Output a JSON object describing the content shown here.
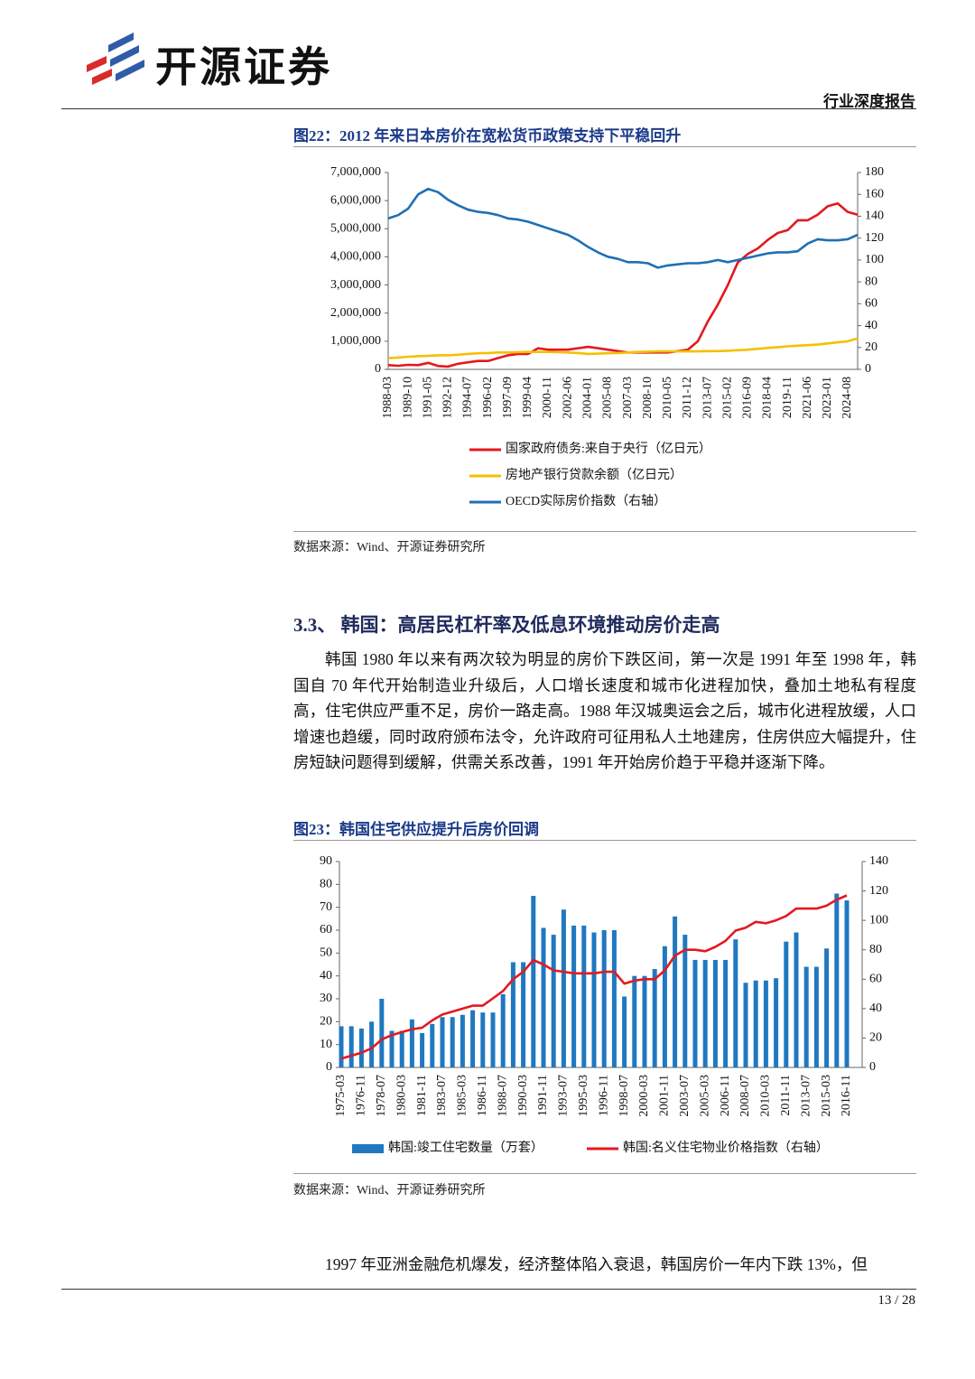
{
  "header": {
    "brand": "开源证券",
    "report_type": "行业深度报告"
  },
  "section": {
    "number": "3.3、",
    "title": "韩国：高居民杠杆率及低息环境推动房价走高"
  },
  "paragraphs": [
    "韩国 1980 年以来有两次较为明显的房价下跌区间，第一次是 1991 年至 1998 年，韩国自 70 年代开始制造业升级后，人口增长速度和城市化进程加快，叠加土地私有程度高，住宅供应严重不足，房价一路走高。1988 年汉城奥运会之后，城市化进程放缓，人口增速也趋缓，同时政府颁布法令，允许政府可征用私人土地建房，住房供应大幅提升，住房短缺问题得到缓解，供需关系改善，1991 年开始房价趋于平稳并逐渐下降。",
    "1997 年亚洲金融危机爆发，经济整体陷入衰退，韩国房价一年内下跌 13%，但"
  ],
  "sources": [
    "数据来源：Wind、开源证券研究所",
    "数据来源：Wind、开源证券研究所"
  ],
  "footer": {
    "page": "13 / 28"
  },
  "chart_data": [
    {
      "type": "line",
      "title": "图22：2012 年来日本房价在宽松货币政策支持下平稳回升",
      "categories": [
        "1988-03",
        null,
        "1989-10",
        null,
        "1991-05",
        null,
        "1992-12",
        null,
        "1994-07",
        null,
        "1996-02",
        null,
        "1997-09",
        null,
        "1999-04",
        null,
        "2000-11",
        null,
        "2002-06",
        null,
        "2004-01",
        null,
        "2005-08",
        null,
        "2007-03",
        null,
        "2008-10",
        null,
        "2010-05",
        null,
        "2011-12",
        null,
        "2013-07",
        null,
        "2015-02",
        null,
        "2016-09",
        null,
        "2018-04",
        null,
        "2019-11",
        null,
        "2021-06",
        null,
        "2023-01",
        null,
        "2024-08",
        null
      ],
      "series": [
        {
          "name": "国家政府债务:来自于央行（亿日元）",
          "color": "#e3191f",
          "values": [
            150000,
            130000,
            160000,
            150000,
            230000,
            120000,
            100000,
            200000,
            250000,
            300000,
            300000,
            400000,
            500000,
            550000,
            550000,
            750000,
            700000,
            700000,
            700000,
            750000,
            800000,
            750000,
            700000,
            650000,
            600000,
            600000,
            600000,
            600000,
            600000,
            650000,
            700000,
            1000000,
            1700000,
            2300000,
            3000000,
            3800000,
            4100000,
            4300000,
            4600000,
            4850000,
            4950000,
            5300000,
            5300000,
            5500000,
            5800000,
            5900000,
            5600000,
            5500000
          ]
        },
        {
          "name": "房地产银行贷款余额（亿日元）",
          "color": "#f5c000",
          "values": [
            400000,
            420000,
            450000,
            470000,
            480000,
            500000,
            500000,
            520000,
            550000,
            570000,
            580000,
            600000,
            600000,
            610000,
            620000,
            620000,
            620000,
            610000,
            600000,
            580000,
            550000,
            560000,
            570000,
            580000,
            600000,
            620000,
            630000,
            640000,
            640000,
            640000,
            640000,
            640000,
            650000,
            650000,
            660000,
            680000,
            700000,
            730000,
            760000,
            790000,
            820000,
            840000,
            860000,
            880000,
            920000,
            960000,
            1000000,
            1100000
          ]
        },
        {
          "name": "OECD实际房价指数（右轴）",
          "color": "#1f6fb5",
          "axis": "y2",
          "values": [
            138,
            141,
            147,
            160,
            165,
            162,
            155,
            150,
            146,
            144,
            143,
            141,
            138,
            137,
            135,
            132,
            129,
            126,
            123,
            118,
            112,
            107,
            103,
            101,
            98,
            98,
            97,
            93,
            95,
            96,
            97,
            97,
            98,
            100,
            98,
            100,
            102,
            104,
            106,
            107,
            107,
            108,
            115,
            119,
            118,
            118,
            119,
            123
          ]
        }
      ],
      "ylim": [
        0,
        7000000
      ],
      "yticks": [
        0,
        {
          "value": 1000000,
          "label": "1,000,000"
        },
        {
          "value": 2000000,
          "label": "2,000,000"
        },
        {
          "value": 3000000,
          "label": "3,000,000"
        },
        {
          "value": 4000000,
          "label": "4,000,000"
        },
        {
          "value": 5000000,
          "label": "5,000,000"
        },
        {
          "value": 6000000,
          "label": "6,000,000"
        },
        {
          "value": 7000000,
          "label": "7,000,000"
        }
      ],
      "y2lim": [
        0,
        180
      ],
      "y2ticks": [
        0,
        20,
        40,
        60,
        80,
        100,
        120,
        140,
        160,
        180
      ],
      "grid": false,
      "legend": "bottom"
    },
    {
      "type": "bar",
      "title": "图23：韩国住宅供应提升后房价回调",
      "categories": [
        "1975-03",
        null,
        "1976-11",
        null,
        "1978-07",
        null,
        "1980-03",
        null,
        "1981-11",
        null,
        "1983-07",
        null,
        "1985-03",
        null,
        "1986-11",
        null,
        "1988-07",
        null,
        "1990-03",
        null,
        "1991-11",
        null,
        "1993-07",
        null,
        "1995-03",
        null,
        "1996-11",
        null,
        "1998-07",
        null,
        "2000-03",
        null,
        "2001-11",
        null,
        "2003-07",
        null,
        "2005-03",
        null,
        "2006-11",
        null,
        "2008-07",
        null,
        "2010-03",
        null,
        "2011-11",
        null,
        "2013-07",
        null,
        "2015-03",
        null,
        "2016-11"
      ],
      "series": [
        {
          "name": "韩国:竣工住宅数量（万套）",
          "type": "bar",
          "color": "#1f78c1",
          "values": [
            18,
            18,
            17,
            20,
            30,
            16,
            16,
            21,
            15,
            19,
            22,
            22,
            23,
            25,
            24,
            24,
            32,
            46,
            46,
            75,
            61,
            58,
            69,
            62,
            62,
            59,
            60,
            60,
            31,
            40,
            40,
            43,
            53,
            66,
            58,
            47,
            47,
            47,
            47,
            56,
            37,
            38,
            38,
            39,
            55,
            59,
            44,
            44,
            52,
            76,
            73
          ]
        },
        {
          "name": "韩国:名义住宅物业价格指数（右轴）",
          "type": "line",
          "color": "#e3191f",
          "axis": "y2",
          "values": [
            6,
            8,
            10,
            13,
            19,
            22,
            24,
            26,
            27,
            32,
            36,
            38,
            40,
            42,
            42,
            47,
            52,
            60,
            65,
            73,
            70,
            66,
            65,
            64,
            64,
            64,
            65,
            65,
            57,
            59,
            60,
            60,
            66,
            76,
            80,
            80,
            79,
            82,
            86,
            93,
            95,
            99,
            98,
            100,
            103,
            108,
            108,
            108,
            110,
            114,
            117
          ]
        }
      ],
      "ylim": [
        0,
        90
      ],
      "yticks": [
        0,
        10,
        20,
        30,
        40,
        50,
        60,
        70,
        80,
        90
      ],
      "y2lim": [
        0,
        140
      ],
      "y2ticks": [
        0,
        20,
        40,
        60,
        80,
        100,
        120,
        140
      ],
      "grid": false,
      "legend": "bottom"
    }
  ]
}
